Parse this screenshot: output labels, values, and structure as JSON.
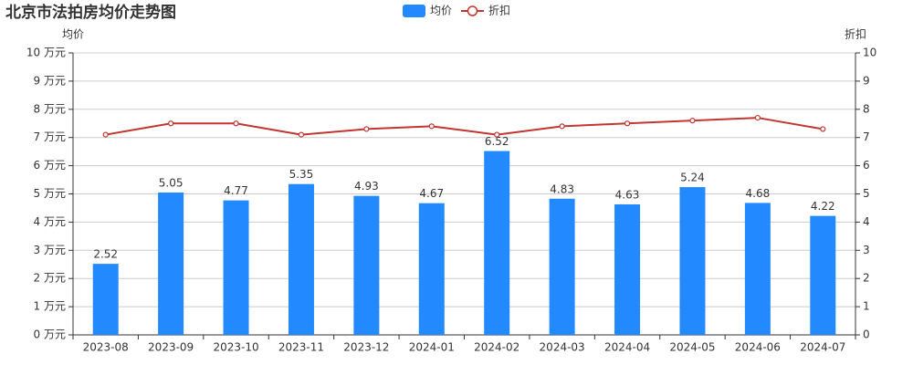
{
  "chart_data": {
    "type": "bar_line",
    "title": "北京市法拍房均价走势图",
    "y_label": "均价",
    "y2_label": "折扣",
    "categories": [
      "2023-08",
      "2023-09",
      "2023-10",
      "2023-11",
      "2023-12",
      "2024-01",
      "2024-02",
      "2024-03",
      "2024-04",
      "2024-05",
      "2024-06",
      "2024-07"
    ],
    "series": [
      {
        "name": "均价",
        "type": "bar",
        "color": "#2389ff",
        "values": [
          2.52,
          5.05,
          4.77,
          5.35,
          4.93,
          4.67,
          6.52,
          4.83,
          4.63,
          5.24,
          4.68,
          4.22
        ]
      },
      {
        "name": "折扣",
        "type": "line",
        "color": "#c23531",
        "axis": "y2",
        "values": [
          7.1,
          7.5,
          7.5,
          7.1,
          7.3,
          7.4,
          7.1,
          7.4,
          7.5,
          7.6,
          7.7,
          7.3
        ]
      }
    ],
    "ylim": [
      0,
      10
    ],
    "yticks": [
      {
        "value": 0,
        "label": "0 万元"
      },
      {
        "value": 1,
        "label": "1 万元"
      },
      {
        "value": 2,
        "label": "2 万元"
      },
      {
        "value": 3,
        "label": "3 万元"
      },
      {
        "value": 4,
        "label": "4 万元"
      },
      {
        "value": 5,
        "label": "5 万元"
      },
      {
        "value": 6,
        "label": "6 万元"
      },
      {
        "value": 7,
        "label": "7 万元"
      },
      {
        "value": 8,
        "label": "8 万元"
      },
      {
        "value": 9,
        "label": "9 万元"
      },
      {
        "value": 10,
        "label": "10 万元"
      }
    ],
    "y2lim": [
      0,
      10
    ],
    "y2ticks": [
      0,
      1,
      2,
      3,
      4,
      5,
      6,
      7,
      8,
      9,
      10
    ],
    "grid": true
  }
}
